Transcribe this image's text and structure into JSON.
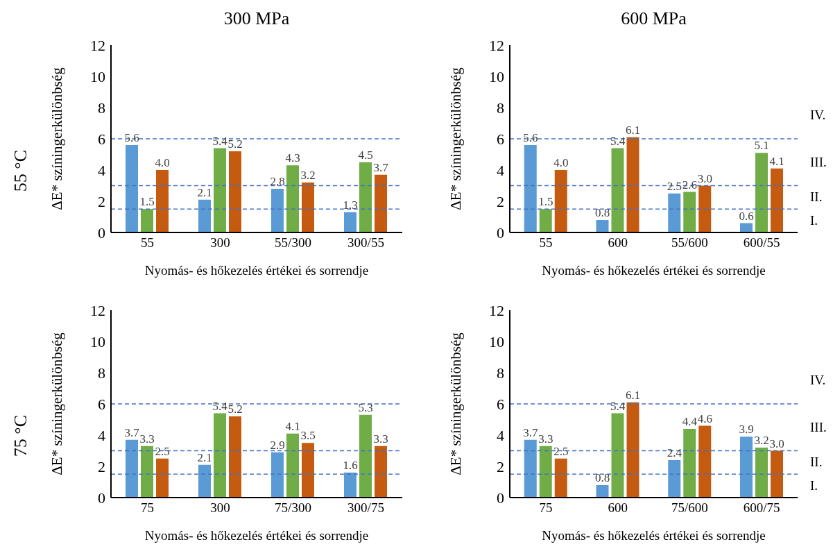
{
  "chart_data": [
    {
      "type": "bar",
      "title": "300 MPa",
      "xlabel": "Nyomás- és hőkezelés értékei és sorrendje",
      "ylabel": "ΔE* színingerkülönbség",
      "categories": [
        "55",
        "300",
        "55/300",
        "300/55"
      ],
      "series": [
        {
          "color": "#5b9bd5",
          "values": [
            5.6,
            2.1,
            2.8,
            1.3
          ],
          "value_labels": [
            "5.6",
            "2.1",
            "2.8",
            "1.3"
          ]
        },
        {
          "color": "#70ad47",
          "values": [
            1.5,
            5.4,
            4.3,
            4.5
          ],
          "value_labels": [
            "1.5",
            "5.4",
            "4.3",
            "4.5"
          ]
        },
        {
          "color": "#c55a11",
          "values": [
            4.0,
            5.2,
            3.2,
            3.7
          ],
          "value_labels": [
            "4.0",
            "5.2",
            "3.2",
            "3.7"
          ]
        }
      ],
      "ylim": [
        0,
        12
      ],
      "yticks": [
        0,
        2,
        4,
        6,
        8,
        10,
        12
      ],
      "ref_lines": [
        {
          "axis": "y",
          "value": 1.5,
          "color": "#4472c4",
          "line_style": "dashed"
        },
        {
          "axis": "y",
          "value": 3,
          "color": "#4472c4",
          "line_style": "dashed"
        },
        {
          "axis": "y",
          "value": 6,
          "color": "#4472c4",
          "line_style": "dashed"
        }
      ],
      "annotations": [
        "55 °C"
      ]
    },
    {
      "type": "bar",
      "title": "600 MPa",
      "xlabel": "Nyomás- és hőkezelés értékei és sorrendje",
      "ylabel": "ΔE* színingerkülönbség",
      "categories": [
        "55",
        "600",
        "55/600",
        "600/55"
      ],
      "series": [
        {
          "color": "#5b9bd5",
          "values": [
            5.6,
            0.8,
            2.5,
            0.6
          ],
          "value_labels": [
            "5.6",
            "0.8",
            "2.5",
            "0.6"
          ]
        },
        {
          "color": "#70ad47",
          "values": [
            1.5,
            5.4,
            2.6,
            5.1
          ],
          "value_labels": [
            "1.5",
            "5.4",
            "2.6",
            "5.1"
          ]
        },
        {
          "color": "#c55a11",
          "values": [
            4.0,
            6.1,
            3.0,
            4.1
          ],
          "value_labels": [
            "4.0",
            "6.1",
            "3.0",
            "4.1"
          ]
        }
      ],
      "ylim": [
        0,
        12
      ],
      "yticks": [
        0,
        2,
        4,
        6,
        8,
        10,
        12
      ],
      "ref_lines": [
        {
          "axis": "y",
          "value": 1.5,
          "color": "#4472c4",
          "line_style": "dashed"
        },
        {
          "axis": "y",
          "value": 3,
          "color": "#4472c4",
          "line_style": "dashed"
        },
        {
          "axis": "y",
          "value": 6,
          "color": "#4472c4",
          "line_style": "dashed"
        }
      ],
      "annotations": [
        "IV.",
        "III.",
        "II.",
        "I."
      ]
    },
    {
      "type": "bar",
      "xlabel": "Nyomás- és hőkezelés értékei és sorrendje",
      "ylabel": "ΔE* színingerkülönbség",
      "categories": [
        "75",
        "300",
        "75/300",
        "300/75"
      ],
      "series": [
        {
          "color": "#5b9bd5",
          "values": [
            3.7,
            2.1,
            2.9,
            1.6
          ],
          "value_labels": [
            "3.7",
            "2.1",
            "2.9",
            "1.6"
          ]
        },
        {
          "color": "#70ad47",
          "values": [
            3.3,
            5.4,
            4.1,
            5.3
          ],
          "value_labels": [
            "3.3",
            "5.4",
            "4.1",
            "5.3"
          ]
        },
        {
          "color": "#c55a11",
          "values": [
            2.5,
            5.2,
            3.5,
            3.3
          ],
          "value_labels": [
            "2.5",
            "5.2",
            "3.5",
            "3.3"
          ]
        }
      ],
      "ylim": [
        0,
        12
      ],
      "yticks": [
        0,
        2,
        4,
        6,
        8,
        10,
        12
      ],
      "ref_lines": [
        {
          "axis": "y",
          "value": 1.5,
          "color": "#4472c4",
          "line_style": "dashed"
        },
        {
          "axis": "y",
          "value": 3,
          "color": "#4472c4",
          "line_style": "dashed"
        },
        {
          "axis": "y",
          "value": 6,
          "color": "#4472c4",
          "line_style": "dashed"
        }
      ],
      "annotations": [
        "75 °C"
      ]
    },
    {
      "type": "bar",
      "xlabel": "Nyomás- és hőkezelés értékei és sorrendje",
      "ylabel": "ΔE* színingerkülönbség",
      "categories": [
        "75",
        "600",
        "75/600",
        "600/75"
      ],
      "series": [
        {
          "color": "#5b9bd5",
          "values": [
            3.7,
            0.8,
            2.4,
            3.9
          ],
          "value_labels": [
            "3.7",
            "0.8",
            "2.4",
            "3.9"
          ]
        },
        {
          "color": "#70ad47",
          "values": [
            3.3,
            5.4,
            4.4,
            3.2
          ],
          "value_labels": [
            "3.3",
            "5.4",
            "4.4",
            "3.2"
          ]
        },
        {
          "color": "#c55a11",
          "values": [
            2.5,
            6.1,
            4.6,
            3.0
          ],
          "value_labels": [
            "2.5",
            "6.1",
            "4.6",
            "3.0"
          ]
        }
      ],
      "ylim": [
        0,
        12
      ],
      "yticks": [
        0,
        2,
        4,
        6,
        8,
        10,
        12
      ],
      "ref_lines": [
        {
          "axis": "y",
          "value": 1.5,
          "color": "#4472c4",
          "line_style": "dashed"
        },
        {
          "axis": "y",
          "value": 3,
          "color": "#4472c4",
          "line_style": "dashed"
        },
        {
          "axis": "y",
          "value": 6,
          "color": "#4472c4",
          "line_style": "dashed"
        }
      ],
      "annotations": [
        "IV.",
        "III.",
        "II.",
        "I."
      ]
    }
  ]
}
